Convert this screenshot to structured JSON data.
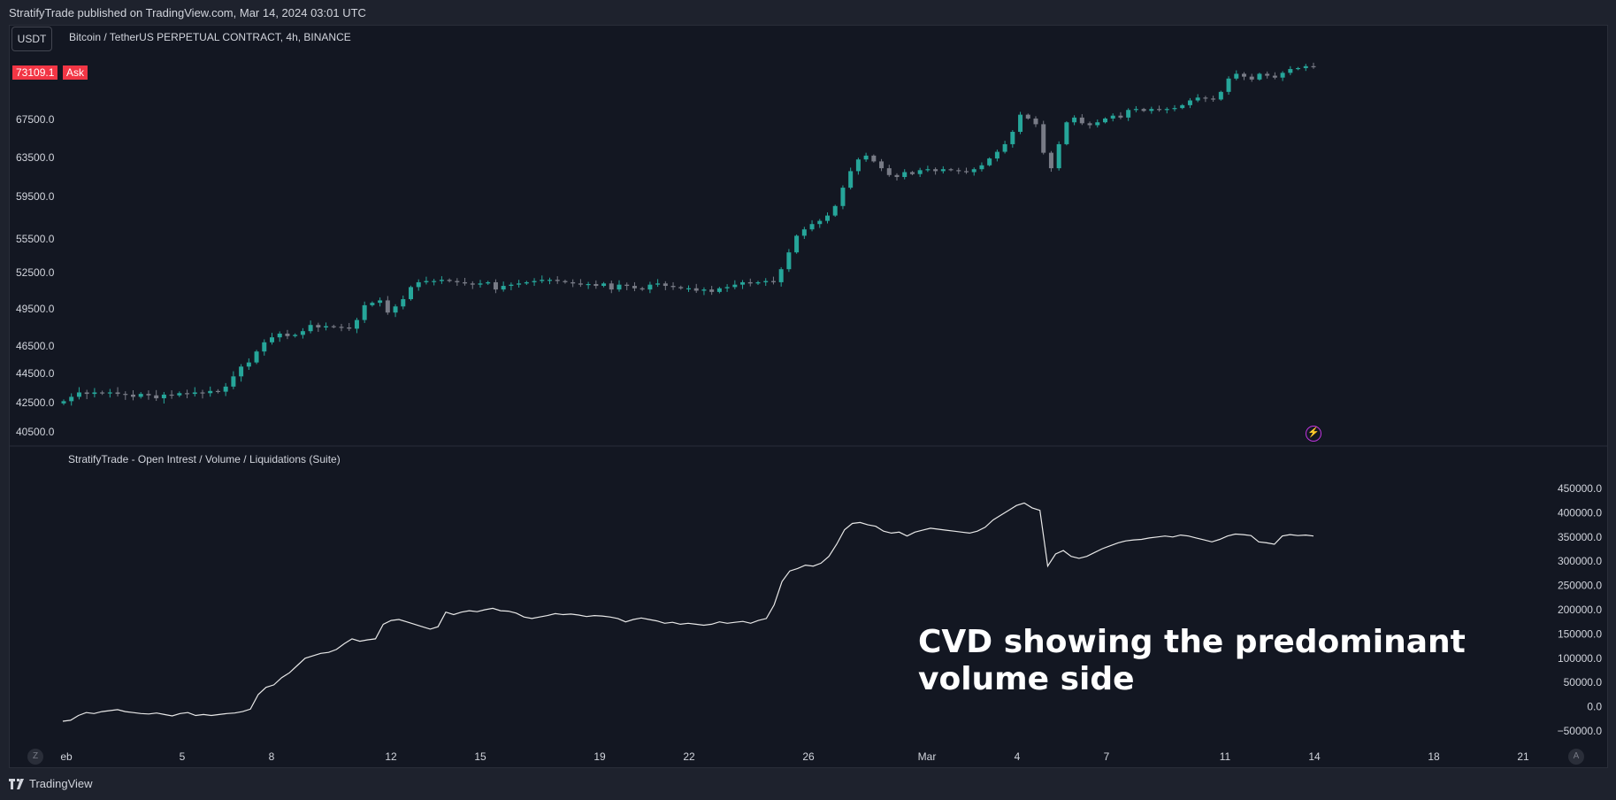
{
  "header": {
    "published": "StratifyTrade published on TradingView.com, Mar 14, 2024 03:01 UTC"
  },
  "toolbar": {
    "currency": "USDT"
  },
  "symbol": {
    "title": "Bitcoin / TetherUS PERPETUAL CONTRACT, 4h, BINANCE"
  },
  "price_tag": {
    "value": "73109.1",
    "label": "Ask",
    "color": "#f23645"
  },
  "indicator": {
    "title": "StratifyTrade - Open Intrest / Volume / Liquidations (Suite)"
  },
  "annotation": {
    "line1": "CVD showing the predominant",
    "line2": "volume side"
  },
  "footer": {
    "brand": "TradingView"
  },
  "controls": {
    "z": "Z",
    "a": "A"
  },
  "colors": {
    "up": "#26a69a",
    "down": "#787b86",
    "background": "#131722",
    "line": "#e8e8e8"
  },
  "chart_data": [
    {
      "type": "candlestick",
      "y_ticks": [
        "40500.0",
        "42500.0",
        "44500.0",
        "46500.0",
        "49500.0",
        "52500.0",
        "55500.0",
        "59500.0",
        "63500.0",
        "67500.0"
      ],
      "ylim": [
        39500,
        73500
      ],
      "x_ticks": [
        "eb",
        "5",
        "8",
        "12",
        "15",
        "19",
        "22",
        "26",
        "Mar",
        "4",
        "7",
        "11",
        "14",
        "18",
        "21"
      ],
      "close": [
        42600,
        42900,
        43200,
        43100,
        43200,
        43150,
        43200,
        43100,
        43050,
        42900,
        43100,
        43000,
        42800,
        43050,
        43000,
        43150,
        43100,
        43200,
        43150,
        43300,
        43250,
        43600,
        44300,
        45000,
        45300,
        46100,
        46800,
        47200,
        47500,
        47300,
        47400,
        47700,
        48200,
        48000,
        48100,
        48050,
        48000,
        47900,
        48600,
        49800,
        50000,
        50200,
        49200,
        49700,
        50300,
        51300,
        51700,
        51800,
        51800,
        51900,
        51800,
        51700,
        51600,
        51500,
        51600,
        51700,
        51100,
        51400,
        51500,
        51600,
        51700,
        51800,
        51900,
        51900,
        51800,
        51700,
        51600,
        51500,
        51550,
        51400,
        51600,
        51100,
        51500,
        51400,
        51200,
        51100,
        51500,
        51600,
        51400,
        51300,
        51200,
        51200,
        51000,
        51100,
        50900,
        51200,
        51300,
        51500,
        51700,
        51600,
        51700,
        51800,
        51700,
        52800,
        54300,
        55800,
        56400,
        56900,
        57200,
        57700,
        58600,
        60400,
        62100,
        63300,
        63700,
        63100,
        62400,
        61700,
        61500,
        62000,
        61800,
        62200,
        62300,
        62100,
        62300,
        62200,
        62100,
        62000,
        62300,
        62700,
        63400,
        64100,
        64900,
        66200,
        68000,
        67600,
        67000,
        64000,
        62400,
        64900,
        67200,
        67700,
        67100,
        66900,
        67200,
        67600,
        67900,
        67700,
        68500,
        68600,
        68400,
        68600,
        68500,
        68600,
        68700,
        69000,
        69500,
        69800,
        69700,
        69600,
        70400,
        71800,
        72300,
        72000,
        71700,
        72300,
        72100,
        71900,
        72400,
        72800,
        72900,
        73100,
        73000
      ],
      "series": [
        {
          "name": "",
          "values": []
        }
      ]
    },
    {
      "type": "line",
      "title": "StratifyTrade - Open Intrest / Volume / Liquidations (Suite)",
      "y_ticks": [
        "450000.0",
        "400000.0",
        "350000.0",
        "300000.0",
        "250000.0",
        "200000.0",
        "150000.0",
        "100000.0",
        "50000.0",
        "0.0",
        "−50000.0"
      ],
      "ylim": [
        -55000,
        455000
      ],
      "values": [
        -30000,
        -28000,
        -18000,
        -12000,
        -14000,
        -10000,
        -8000,
        -6000,
        -10000,
        -12000,
        -14000,
        -15000,
        -13000,
        -16000,
        -19000,
        -14000,
        -12000,
        -18000,
        -16000,
        -18000,
        -16000,
        -14000,
        -13000,
        -10000,
        -5000,
        25000,
        40000,
        45000,
        60000,
        70000,
        85000,
        100000,
        105000,
        110000,
        112000,
        118000,
        130000,
        140000,
        135000,
        138000,
        140000,
        170000,
        178000,
        180000,
        175000,
        170000,
        165000,
        160000,
        165000,
        195000,
        190000,
        195000,
        198000,
        196000,
        200000,
        203000,
        198000,
        197000,
        193000,
        185000,
        182000,
        185000,
        188000,
        192000,
        190000,
        191000,
        189000,
        186000,
        188000,
        187000,
        185000,
        182000,
        175000,
        180000,
        183000,
        180000,
        177000,
        172000,
        174000,
        170000,
        172000,
        170000,
        168000,
        170000,
        175000,
        172000,
        174000,
        176000,
        172000,
        178000,
        182000,
        210000,
        258000,
        280000,
        285000,
        292000,
        290000,
        296000,
        310000,
        335000,
        365000,
        378000,
        380000,
        375000,
        372000,
        362000,
        358000,
        360000,
        352000,
        360000,
        364000,
        368000,
        366000,
        364000,
        362000,
        360000,
        358000,
        362000,
        370000,
        385000,
        395000,
        405000,
        415000,
        420000,
        410000,
        405000,
        290000,
        315000,
        322000,
        310000,
        306000,
        310000,
        318000,
        326000,
        332000,
        338000,
        342000,
        344000,
        345000,
        348000,
        350000,
        352000,
        350000,
        354000,
        352000,
        348000,
        344000,
        340000,
        345000,
        352000,
        356000,
        355000,
        353000,
        340000,
        338000,
        335000,
        352000,
        355000,
        353000,
        354000,
        352000
      ]
    }
  ]
}
